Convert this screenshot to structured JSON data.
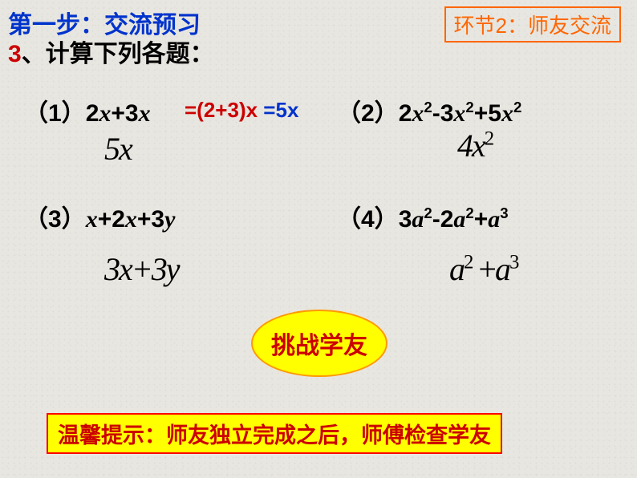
{
  "colors": {
    "blue": "#0033cc",
    "red": "#cc0000",
    "orange": "#ff6600",
    "black": "#000000",
    "yellow_fill": "#ffff00",
    "orange_border": "#ff9900",
    "tip_border": "#ff0000"
  },
  "header": {
    "step_title": "第一步：交流预习",
    "segment_label": "环节2：师友交流",
    "subtitle_num": "3",
    "subtitle_text": "、计算下列各题："
  },
  "problems": {
    "p1_num": "（1）",
    "p1_expr_a": "2",
    "p1_var1": "x",
    "p1_expr_b": "+3",
    "p1_var2": "x",
    "p1_inline1": "=(2+3)x",
    "p1_inline2": " =5x",
    "p1_answer": "5x",
    "p2_num": "（2）",
    "p2_html": "2<span class=\"mathvar\">x</span><sup>2</sup>-3<span class=\"mathvar\">x</span><sup>2</sup>+5<span class=\"mathvar\">x</span><sup>2</sup>",
    "p2_answer": "4x",
    "p2_answer_sup": "2",
    "p3_num": "（3）",
    "p3_html": "<span class=\"mathvar\">x</span>+2<span class=\"mathvar\">x</span>+3<span class=\"mathvar\">y</span>",
    "p3_answer": "3x+3y",
    "p4_num": "（4）",
    "p4_html": "3<span class=\"mathvar\">a</span><sup>2</sup>-2<span class=\"mathvar\">a</span><sup>2</sup>+<span class=\"mathvar\">a</span><sup>3</sup>",
    "p4_answer_a": "a",
    "p4_answer_sup1": "2",
    "p4_answer_plus": " +",
    "p4_answer_b": "a",
    "p4_answer_sup2": "3"
  },
  "ellipse": {
    "label": "挑战学友"
  },
  "tip": {
    "text": "温馨提示：师友独立完成之后，师傅检查学友"
  }
}
